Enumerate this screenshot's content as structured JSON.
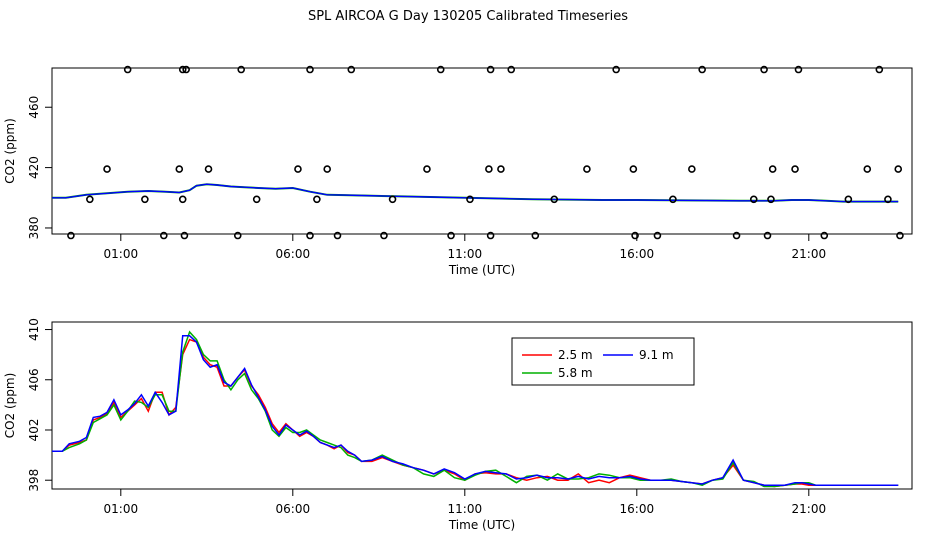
{
  "title": "SPL AIRCOA G  Day 130205  Calibrated Timeseries",
  "chart_data": [
    {
      "type": "scatter",
      "xlabel": "Time (UTC)",
      "ylabel": "CO2 (ppm)",
      "xticks": [
        "01:00",
        "06:00",
        "11:00",
        "16:00",
        "21:00"
      ],
      "xtick_values": [
        1,
        6,
        11,
        16,
        21
      ],
      "yticks": [
        380,
        420,
        460
      ],
      "xlim": [
        -1,
        24
      ],
      "ylim": [
        376,
        486
      ],
      "points_hours": [
        -0.45,
        0.1,
        0.6,
        1.2,
        1.7,
        2.25,
        2.7,
        2.8,
        2.8,
        2.85,
        2.9,
        3.55,
        4.4,
        4.5,
        4.95,
        6.15,
        6.5,
        6.5,
        6.7,
        7.0,
        7.3,
        7.7,
        8.65,
        8.9,
        9.9,
        10.3,
        10.6,
        11.15,
        11.7,
        11.75,
        11.75,
        12.05,
        12.35,
        13.05,
        13.6,
        14.55,
        15.4,
        15.9,
        15.95,
        16.6,
        17.05,
        17.6,
        17.9,
        18.9,
        19.4,
        19.7,
        19.8,
        19.9,
        19.95,
        20.6,
        20.7,
        21.45,
        22.15,
        22.7,
        23.05,
        23.3,
        23.6,
        23.65
      ],
      "points_ppm": [
        375,
        399,
        419,
        485,
        399,
        375,
        419,
        399,
        485,
        375,
        485,
        419,
        375,
        485,
        399,
        419,
        375,
        485,
        399,
        419,
        375,
        485,
        375,
        399,
        419,
        485,
        375,
        399,
        419,
        375,
        485,
        419,
        485,
        375,
        399,
        419,
        485,
        419,
        375,
        375,
        399,
        419,
        485,
        375,
        399,
        485,
        375,
        399,
        419,
        419,
        485,
        375,
        399,
        419,
        485,
        399,
        419,
        375
      ],
      "line": {
        "hours": [
          -1.0,
          -0.6,
          0,
          0.6,
          1.2,
          1.8,
          2.3,
          2.7,
          3.0,
          3.2,
          3.5,
          3.8,
          4.2,
          4.6,
          5.0,
          5.5,
          6.0,
          6.5,
          7.0,
          7.5,
          8.0,
          9.0,
          10.0,
          11.0,
          12.0,
          13.0,
          14.0,
          15.0,
          16.0,
          17.0,
          18.0,
          19.0,
          20.0,
          20.5,
          21.0,
          21.5,
          22.0,
          23.0,
          23.6
        ],
        "ppm": [
          400,
          400,
          402,
          403,
          404,
          404.5,
          404,
          403.5,
          405,
          408,
          409,
          408.5,
          407.5,
          407,
          406.5,
          406,
          406.5,
          404,
          402,
          401.8,
          401.5,
          401,
          400.5,
          400,
          399.5,
          399,
          398.8,
          398.5,
          398.5,
          398.3,
          398.2,
          398,
          398,
          398.5,
          398.5,
          398,
          397.5,
          397.5,
          397.5
        ]
      }
    },
    {
      "type": "line",
      "xlabel": "Time (UTC)",
      "ylabel": "CO2 (ppm)",
      "xticks": [
        "01:00",
        "06:00",
        "11:00",
        "16:00",
        "21:00"
      ],
      "xtick_values": [
        1,
        6,
        11,
        16,
        21
      ],
      "yticks": [
        398,
        402,
        406,
        410
      ],
      "xlim": [
        -1,
        24
      ],
      "ylim": [
        397.3,
        410.6
      ],
      "legend": {
        "position": "top-right",
        "entries": [
          "2.5 m",
          "5.8 m",
          "9.1 m"
        ]
      },
      "x": [
        -1.0,
        -0.7,
        -0.5,
        -0.2,
        0,
        0.2,
        0.4,
        0.6,
        0.8,
        1.0,
        1.2,
        1.4,
        1.6,
        1.8,
        2.0,
        2.2,
        2.4,
        2.6,
        2.8,
        3.0,
        3.2,
        3.4,
        3.6,
        3.8,
        4.0,
        4.2,
        4.4,
        4.6,
        4.8,
        5.0,
        5.2,
        5.4,
        5.6,
        5.8,
        6.0,
        6.2,
        6.4,
        6.6,
        6.8,
        7.0,
        7.2,
        7.4,
        7.6,
        7.8,
        8.0,
        8.3,
        8.6,
        8.9,
        9.2,
        9.5,
        9.8,
        10.1,
        10.4,
        10.7,
        11.0,
        11.3,
        11.6,
        11.9,
        12.2,
        12.5,
        12.8,
        13.1,
        13.4,
        13.7,
        14.0,
        14.3,
        14.6,
        14.9,
        15.2,
        15.5,
        15.8,
        16.1,
        16.4,
        16.7,
        17.0,
        17.3,
        17.6,
        17.9,
        18.2,
        18.5,
        18.8,
        19.1,
        19.4,
        19.7,
        20.0,
        20.3,
        20.6,
        20.8,
        21.0,
        21.2,
        21.4,
        21.7,
        22.0,
        22.3,
        22.6,
        22.9,
        23.2,
        23.6
      ],
      "series": [
        {
          "name": "2.5 m",
          "color": "#ff0000",
          "values": [
            400.3,
            400.3,
            400.8,
            401.0,
            401.2,
            402.8,
            403.0,
            403.3,
            404.2,
            403.0,
            403.5,
            404.0,
            404.5,
            403.5,
            405.0,
            405.0,
            403.2,
            403.8,
            408.0,
            409.2,
            409.0,
            407.8,
            407.2,
            407.0,
            405.5,
            405.5,
            406.2,
            406.8,
            405.5,
            404.8,
            403.8,
            402.5,
            401.8,
            402.5,
            402.0,
            401.5,
            401.8,
            401.5,
            401.0,
            400.8,
            400.5,
            400.8,
            400.2,
            400.0,
            399.5,
            399.5,
            399.8,
            399.5,
            399.2,
            399.0,
            398.8,
            398.5,
            398.8,
            398.5,
            398.0,
            398.5,
            398.6,
            398.5,
            398.5,
            398.2,
            398.0,
            398.2,
            398.3,
            398.0,
            398.0,
            398.5,
            397.8,
            398.0,
            397.8,
            398.2,
            398.4,
            398.2,
            398.0,
            398.0,
            398.0,
            397.9,
            397.8,
            397.7,
            398.0,
            398.2,
            399.2,
            398.0,
            397.8,
            397.6,
            397.5,
            397.6,
            397.7,
            397.7,
            397.6,
            397.6,
            397.6,
            397.6,
            397.6,
            397.6,
            397.6,
            397.6,
            397.6,
            397.6
          ]
        },
        {
          "name": "5.8 m",
          "color": "#00b000",
          "values": [
            400.3,
            400.3,
            400.6,
            400.9,
            401.2,
            402.6,
            402.9,
            403.2,
            404.0,
            402.8,
            403.5,
            404.3,
            404.2,
            403.8,
            404.8,
            404.8,
            403.5,
            403.5,
            408.2,
            409.8,
            409.2,
            408.0,
            407.5,
            407.5,
            406.0,
            405.2,
            406.0,
            406.5,
            405.2,
            404.5,
            403.5,
            402.0,
            401.5,
            402.2,
            401.8,
            401.8,
            402.0,
            401.6,
            401.2,
            401.0,
            400.8,
            400.6,
            400.0,
            399.8,
            399.5,
            399.6,
            400.0,
            399.6,
            399.2,
            399.0,
            398.5,
            398.3,
            398.8,
            398.2,
            398.0,
            398.4,
            398.7,
            398.8,
            398.3,
            397.8,
            398.3,
            398.4,
            398.0,
            398.5,
            398.1,
            398.1,
            398.2,
            398.5,
            398.4,
            398.2,
            398.2,
            398.0,
            398.0,
            398.0,
            398.1,
            397.9,
            397.8,
            397.6,
            398.0,
            398.1,
            399.4,
            398.0,
            397.9,
            397.5,
            397.5,
            397.6,
            397.7,
            397.8,
            397.8,
            397.6,
            397.6,
            397.6,
            397.6,
            397.6,
            397.6,
            397.6,
            397.6,
            397.6
          ]
        },
        {
          "name": "9.1 m",
          "color": "#0000ff",
          "values": [
            400.3,
            400.3,
            400.9,
            401.1,
            401.4,
            403.0,
            403.1,
            403.4,
            404.4,
            403.2,
            403.6,
            404.1,
            404.8,
            403.9,
            405.0,
            404.2,
            403.2,
            403.5,
            409.5,
            409.5,
            409.0,
            407.6,
            407.0,
            407.2,
            405.8,
            405.5,
            406.2,
            406.9,
            405.6,
            404.6,
            403.6,
            402.3,
            401.6,
            402.4,
            402.0,
            401.6,
            401.9,
            401.5,
            401.0,
            400.8,
            400.6,
            400.8,
            400.3,
            400.0,
            399.5,
            399.6,
            399.9,
            399.5,
            399.3,
            399.0,
            398.8,
            398.5,
            398.9,
            398.6,
            398.1,
            398.5,
            398.7,
            398.6,
            398.5,
            398.1,
            398.2,
            398.4,
            398.2,
            398.2,
            398.1,
            398.3,
            398.1,
            398.3,
            398.2,
            398.2,
            398.3,
            398.1,
            398.0,
            398.0,
            398.0,
            397.9,
            397.8,
            397.7,
            398.0,
            398.2,
            399.6,
            398.0,
            397.8,
            397.6,
            397.6,
            397.6,
            397.8,
            397.8,
            397.7,
            397.6,
            397.6,
            397.6,
            397.6,
            397.6,
            397.6,
            397.6,
            397.6,
            397.6
          ]
        }
      ]
    }
  ]
}
